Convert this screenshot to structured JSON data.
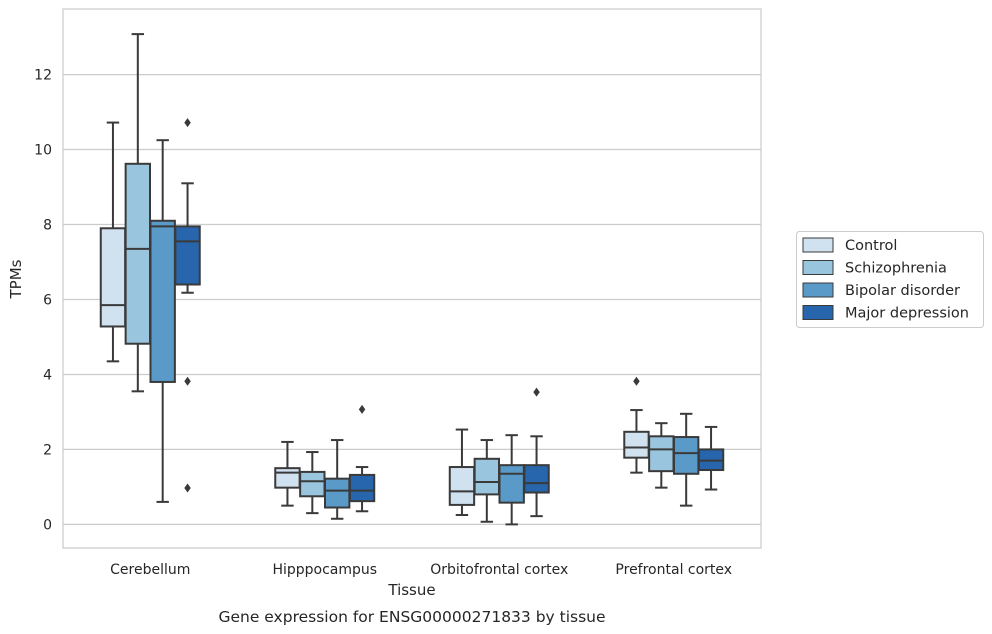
{
  "caption": "Gene expression for ENSG00000271833 by tissue",
  "colors": {
    "Control": "#d0e1f0",
    "Schizophrenia": "#9ac5de",
    "Bipolar disorder": "#5a9ac8",
    "Major depression": "#2766ad",
    "line": "#3a3a3a",
    "grid": "#cccccc",
    "frame": "#cccccc"
  },
  "chart_data": {
    "type": "box",
    "title": "",
    "xlabel": "Tissue",
    "ylabel": "TPMs",
    "ylim": [
      -0.63,
      13.75
    ],
    "yticks": [
      0,
      2,
      4,
      6,
      8,
      10,
      12
    ],
    "grid": "horizontal",
    "legend_position": "right",
    "categories": [
      "Cerebellum",
      "Hipppocampus",
      "Orbitofrontal cortex",
      "Prefrontal cortex"
    ],
    "series": [
      {
        "name": "Control",
        "boxes": [
          {
            "whislo": 4.35,
            "q1": 5.28,
            "med": 5.85,
            "q3": 7.9,
            "whishi": 10.72,
            "fliers": []
          },
          {
            "whislo": 0.5,
            "q1": 0.98,
            "med": 1.38,
            "q3": 1.5,
            "whishi": 2.2,
            "fliers": []
          },
          {
            "whislo": 0.25,
            "q1": 0.52,
            "med": 0.88,
            "q3": 1.53,
            "whishi": 2.53,
            "fliers": []
          },
          {
            "whislo": 1.38,
            "q1": 1.78,
            "med": 2.05,
            "q3": 2.47,
            "whishi": 3.05,
            "fliers": [
              3.82
            ]
          }
        ]
      },
      {
        "name": "Schizophrenia",
        "boxes": [
          {
            "whislo": 3.55,
            "q1": 4.82,
            "med": 7.35,
            "q3": 9.62,
            "whishi": 13.08,
            "fliers": []
          },
          {
            "whislo": 0.3,
            "q1": 0.75,
            "med": 1.15,
            "q3": 1.4,
            "whishi": 1.93,
            "fliers": []
          },
          {
            "whislo": 0.07,
            "q1": 0.8,
            "med": 1.13,
            "q3": 1.75,
            "whishi": 2.25,
            "fliers": []
          },
          {
            "whislo": 0.98,
            "q1": 1.42,
            "med": 2.0,
            "q3": 2.35,
            "whishi": 2.7,
            "fliers": []
          }
        ]
      },
      {
        "name": "Bipolar disorder",
        "boxes": [
          {
            "whislo": 0.6,
            "q1": 3.8,
            "med": 7.95,
            "q3": 8.1,
            "whishi": 10.25,
            "fliers": []
          },
          {
            "whislo": 0.15,
            "q1": 0.45,
            "med": 0.9,
            "q3": 1.22,
            "whishi": 2.25,
            "fliers": []
          },
          {
            "whislo": 0.0,
            "q1": 0.58,
            "med": 1.35,
            "q3": 1.58,
            "whishi": 2.38,
            "fliers": []
          },
          {
            "whislo": 0.5,
            "q1": 1.35,
            "med": 1.9,
            "q3": 2.33,
            "whishi": 2.95,
            "fliers": []
          }
        ]
      },
      {
        "name": "Major depression",
        "boxes": [
          {
            "whislo": 6.18,
            "q1": 6.4,
            "med": 7.55,
            "q3": 7.95,
            "whishi": 9.1,
            "fliers": [
              10.72,
              3.82,
              0.97
            ]
          },
          {
            "whislo": 0.35,
            "q1": 0.62,
            "med": 0.9,
            "q3": 1.32,
            "whishi": 1.53,
            "fliers": [
              3.07
            ]
          },
          {
            "whislo": 0.22,
            "q1": 0.85,
            "med": 1.1,
            "q3": 1.58,
            "whishi": 2.35,
            "fliers": [
              3.53
            ]
          },
          {
            "whislo": 0.93,
            "q1": 1.45,
            "med": 1.7,
            "q3": 2.0,
            "whishi": 2.6,
            "fliers": []
          }
        ]
      }
    ]
  }
}
